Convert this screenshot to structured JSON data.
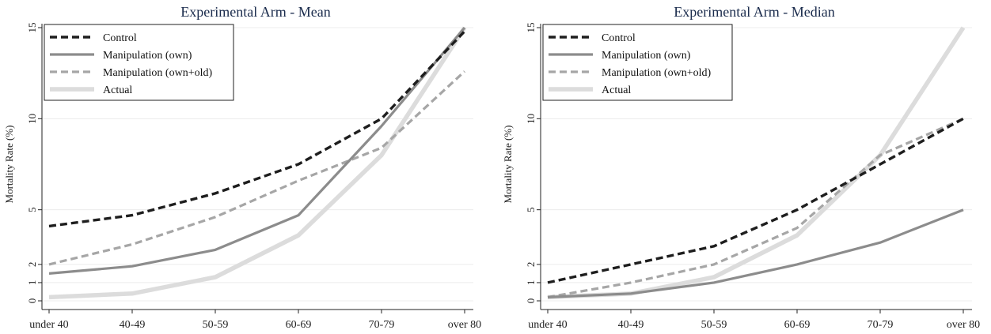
{
  "chart_data": [
    {
      "type": "line",
      "title": "Experimental Arm - Mean",
      "xlabel": "",
      "ylabel": "Mortality Rate (%)",
      "categories": [
        "under 40",
        "40-49",
        "50-59",
        "60-69",
        "70-79",
        "over 80"
      ],
      "yticks": [
        0,
        1,
        2,
        5,
        10,
        15
      ],
      "ylim": [
        0,
        15
      ],
      "grid": true,
      "legend_position": "top-left",
      "series": [
        {
          "name": "Control",
          "style": "dash",
          "color": "#1e1e1e",
          "values": [
            4.1,
            4.7,
            5.9,
            7.5,
            10.0,
            14.8
          ]
        },
        {
          "name": "Manipulation (own)",
          "style": "solid",
          "color": "#8c8c8c",
          "values": [
            1.5,
            1.9,
            2.8,
            4.7,
            9.6,
            15.0
          ]
        },
        {
          "name": "Manipulation (own+old)",
          "style": "dash",
          "color": "#a6a6a6",
          "values": [
            2.0,
            3.1,
            4.6,
            6.6,
            8.4,
            12.6
          ]
        },
        {
          "name": "Actual",
          "style": "solid",
          "color": "#dcdcdc",
          "values": [
            0.2,
            0.4,
            1.3,
            3.6,
            8.0,
            15.0
          ]
        }
      ]
    },
    {
      "type": "line",
      "title": "Experimental Arm - Median",
      "xlabel": "",
      "ylabel": "Mortality Rate (%)",
      "categories": [
        "under 40",
        "40-49",
        "50-59",
        "60-69",
        "70-79",
        "over 80"
      ],
      "yticks": [
        0,
        1,
        2,
        5,
        10,
        15
      ],
      "ylim": [
        0,
        15
      ],
      "grid": true,
      "legend_position": "top-left",
      "series": [
        {
          "name": "Control",
          "style": "dash",
          "color": "#1e1e1e",
          "values": [
            1.0,
            2.0,
            3.0,
            5.0,
            7.5,
            10.0
          ]
        },
        {
          "name": "Manipulation (own)",
          "style": "solid",
          "color": "#8c8c8c",
          "values": [
            0.2,
            0.4,
            1.0,
            2.0,
            3.2,
            5.0
          ]
        },
        {
          "name": "Manipulation (own+old)",
          "style": "dash",
          "color": "#a6a6a6",
          "values": [
            0.2,
            1.0,
            2.0,
            4.0,
            8.0,
            10.0
          ]
        },
        {
          "name": "Actual",
          "style": "solid",
          "color": "#dcdcdc",
          "values": [
            0.2,
            0.4,
            1.3,
            3.6,
            8.0,
            15.0
          ]
        }
      ]
    }
  ]
}
